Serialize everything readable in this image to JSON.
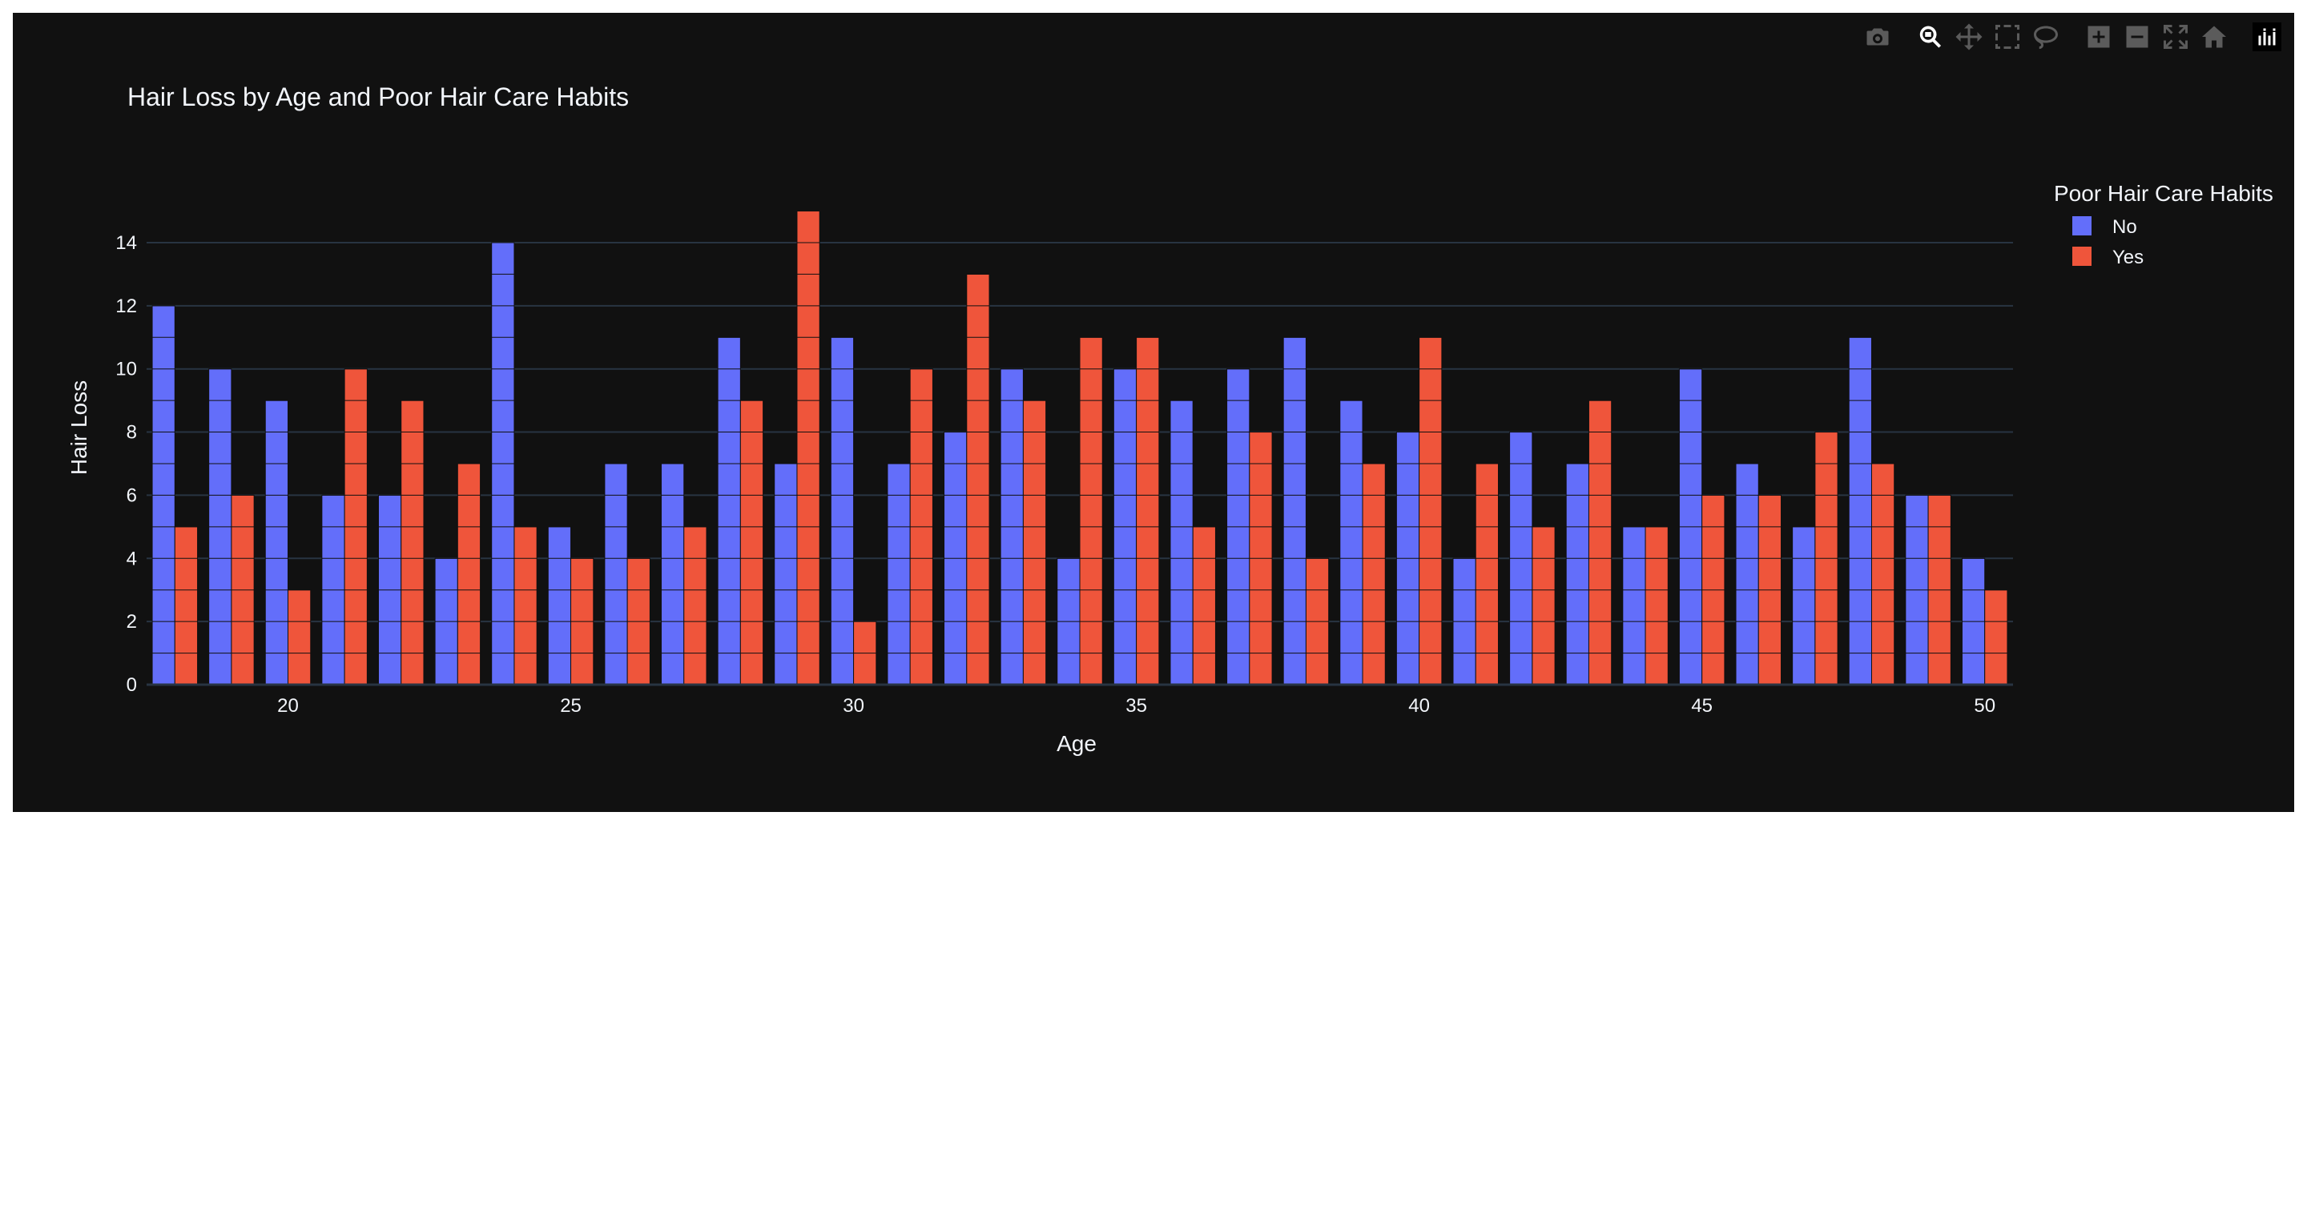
{
  "colors": {
    "paper": "#111111",
    "grid": "#283442",
    "text": "#f2f5fa",
    "no": "#636efa",
    "yes": "#ef553b",
    "modebar_icon": "#5b5b5b",
    "modebar_active": "#ffffff"
  },
  "modebar": {
    "buttons": [
      {
        "name": "camera-icon",
        "active": false
      },
      {
        "name": "zoom-icon",
        "active": true
      },
      {
        "name": "pan-icon",
        "active": false
      },
      {
        "name": "box-select-icon",
        "active": false
      },
      {
        "name": "lasso-select-icon",
        "active": false
      },
      {
        "name": "zoom-in-icon",
        "active": false
      },
      {
        "name": "zoom-out-icon",
        "active": false
      },
      {
        "name": "autoscale-icon",
        "active": false
      },
      {
        "name": "home-icon",
        "active": false
      },
      {
        "name": "plotly-logo-icon",
        "active": false
      }
    ]
  },
  "chart_data": {
    "type": "bar",
    "barmode": "group",
    "title": "Hair Loss by Age and Poor Hair Care Habits",
    "xlabel": "Age",
    "ylabel": "Hair Loss",
    "x": [
      18,
      19,
      20,
      21,
      22,
      23,
      24,
      25,
      26,
      27,
      28,
      29,
      30,
      31,
      32,
      33,
      34,
      35,
      36,
      37,
      38,
      39,
      40,
      41,
      42,
      43,
      44,
      45,
      46,
      47,
      48,
      49,
      50
    ],
    "xlim": [
      17.5,
      50.5
    ],
    "ylim": [
      0,
      15.8
    ],
    "xticks": [
      20,
      25,
      30,
      35,
      40,
      45,
      50
    ],
    "yticks": [
      0,
      2,
      4,
      6,
      8,
      10,
      12,
      14
    ],
    "grid": true,
    "legend": {
      "title": "Poor Hair Care Habits",
      "placement": "top-right"
    },
    "series": [
      {
        "name": "No",
        "color": "#636efa",
        "values": [
          12,
          10,
          9,
          6,
          6,
          4,
          14,
          5,
          7,
          7,
          11,
          7,
          11,
          7,
          8,
          10,
          4,
          10,
          9,
          10,
          11,
          9,
          8,
          4,
          8,
          7,
          5,
          10,
          7,
          5,
          11,
          6,
          4
        ]
      },
      {
        "name": "Yes",
        "color": "#ef553b",
        "values": [
          5,
          6,
          3,
          10,
          9,
          7,
          5,
          4,
          4,
          5,
          9,
          15,
          2,
          10,
          13,
          9,
          11,
          11,
          5,
          8,
          4,
          7,
          11,
          7,
          5,
          9,
          5,
          6,
          6,
          8,
          7,
          6,
          3
        ]
      }
    ]
  }
}
